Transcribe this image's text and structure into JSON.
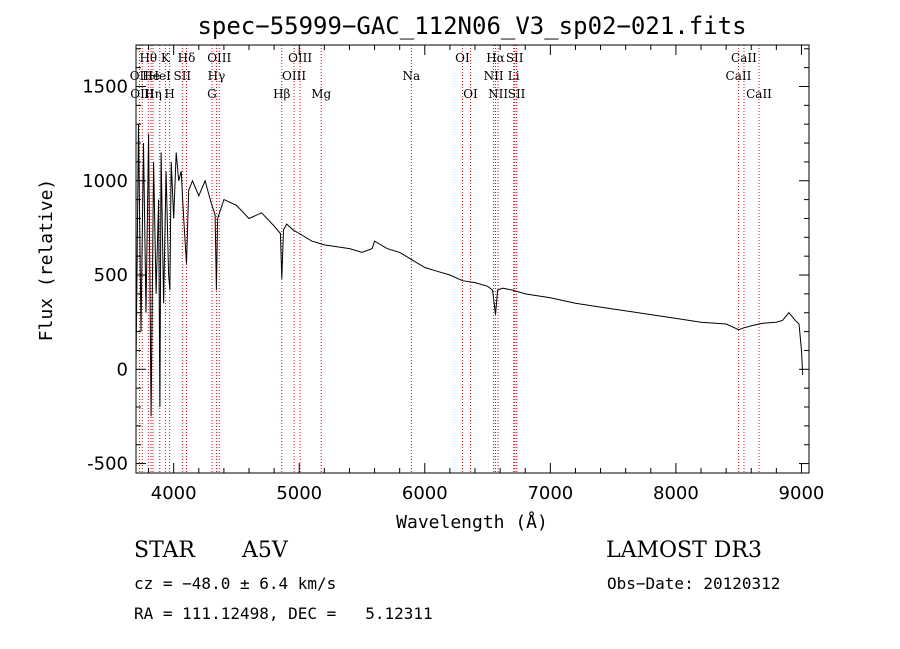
{
  "chart_data": {
    "type": "line",
    "title": "spec−55999−GAC_112N06_V3_sp02−021.fits",
    "xlabel": "Wavelength (Å)",
    "ylabel": "Flux (relative)",
    "xlim": [
      3700,
      9060
    ],
    "ylim": [
      -550,
      1720
    ],
    "xticks": [
      4000,
      5000,
      6000,
      7000,
      8000,
      9000
    ],
    "yticks": [
      -500,
      0,
      500,
      1000,
      1500
    ],
    "grid": false,
    "series": [
      {
        "name": "spectrum",
        "x": [
          3700,
          3720,
          3740,
          3760,
          3780,
          3800,
          3820,
          3840,
          3860,
          3880,
          3890,
          3900,
          3920,
          3940,
          3960,
          3970,
          3980,
          4000,
          4020,
          4040,
          4060,
          4080,
          4102,
          4120,
          4150,
          4200,
          4250,
          4300,
          4330,
          4340,
          4350,
          4360,
          4380,
          4400,
          4500,
          4600,
          4700,
          4800,
          4850,
          4861,
          4875,
          4900,
          4950,
          5000,
          5100,
          5200,
          5300,
          5400,
          5500,
          5580,
          5600,
          5700,
          5800,
          5900,
          6000,
          6100,
          6200,
          6300,
          6400,
          6500,
          6540,
          6563,
          6580,
          6620,
          6700,
          6800,
          7000,
          7200,
          7400,
          7600,
          7800,
          8000,
          8200,
          8400,
          8500,
          8542,
          8600,
          8662,
          8700,
          8800,
          8850,
          8900,
          8950,
          8980,
          9000,
          9010
        ],
        "y": [
          0,
          1300,
          200,
          1200,
          300,
          1250,
          -250,
          1100,
          400,
          900,
          -200,
          1150,
          350,
          1050,
          500,
          420,
          1100,
          800,
          1150,
          1000,
          1050,
          800,
          560,
          950,
          1000,
          920,
          1000,
          880,
          820,
          420,
          800,
          820,
          860,
          900,
          870,
          800,
          830,
          760,
          720,
          480,
          740,
          770,
          740,
          720,
          680,
          660,
          650,
          640,
          620,
          640,
          680,
          640,
          620,
          580,
          540,
          520,
          500,
          470,
          460,
          440,
          420,
          290,
          420,
          430,
          420,
          400,
          380,
          350,
          330,
          310,
          290,
          270,
          250,
          240,
          210,
          220,
          230,
          240,
          245,
          250,
          260,
          300,
          260,
          240,
          100,
          -30
        ]
      }
    ],
    "annotations": [
      "STAR",
      "A5V",
      "LAMOST DR3",
      "cz = −48.0 ± 6.4 km/s",
      "Obs−Date: 20120312",
      "RA = 111.12498, DEC =   5.12311"
    ],
    "lines": [
      {
        "label": "Hθ",
        "x": 3798,
        "row": 0
      },
      {
        "label": "OII",
        "x": 3727,
        "row": 1
      },
      {
        "label": "OIII",
        "x": 3750,
        "row": 2
      },
      {
        "label": "He",
        "x": 3820,
        "row": 1
      },
      {
        "label": "Hη",
        "x": 3835,
        "row": 2
      },
      {
        "label": "K",
        "x": 3934,
        "row": 0
      },
      {
        "label": "H",
        "x": 3968,
        "row": 2
      },
      {
        "label": "HeI",
        "x": 3889,
        "row": 1
      },
      {
        "label": "SII",
        "x": 4069,
        "row": 1
      },
      {
        "label": "Hδ",
        "x": 4102,
        "row": 0
      },
      {
        "label": "OIII",
        "x": 4363,
        "row": 0
      },
      {
        "label": "Hγ",
        "x": 4341,
        "row": 1
      },
      {
        "label": "G",
        "x": 4305,
        "row": 2
      },
      {
        "label": "Hβ",
        "x": 4861,
        "row": 2
      },
      {
        "label": "OIII",
        "x": 5007,
        "row": 0
      },
      {
        "label": "OIII",
        "x": 4959,
        "row": 1
      },
      {
        "label": "Mg",
        "x": 5175,
        "row": 2
      },
      {
        "label": "Na",
        "x": 5893,
        "row": 1
      },
      {
        "label": "OI",
        "x": 6300,
        "row": 0
      },
      {
        "label": "OI",
        "x": 6364,
        "row": 2
      },
      {
        "label": "Hα",
        "x": 6563,
        "row": 0
      },
      {
        "label": "NII",
        "x": 6548,
        "row": 1
      },
      {
        "label": "NII",
        "x": 6584,
        "row": 2
      },
      {
        "label": "SII",
        "x": 6716,
        "row": 0
      },
      {
        "label": "Li",
        "x": 6708,
        "row": 1
      },
      {
        "label": "SII",
        "x": 6731,
        "row": 2
      },
      {
        "label": "CaII",
        "x": 8542,
        "row": 0
      },
      {
        "label": "CaII",
        "x": 8498,
        "row": 1
      },
      {
        "label": "CaII",
        "x": 8662,
        "row": 2
      }
    ],
    "line_color": "#d01010"
  }
}
